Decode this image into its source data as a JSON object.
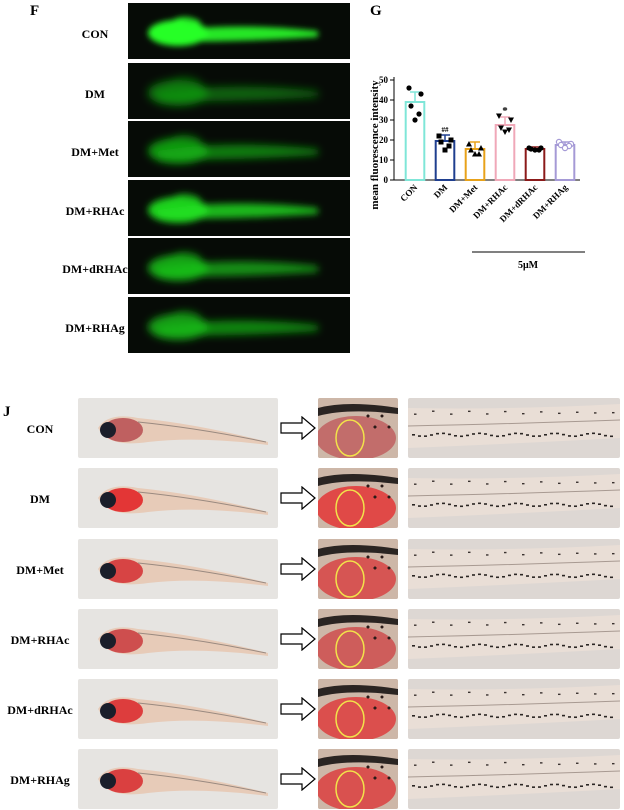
{
  "panel_f": {
    "label": "F",
    "groups": [
      "CON",
      "DM",
      "DM+Met",
      "DM+RHAc",
      "DM+dRHAc",
      "DM+RHAg"
    ],
    "glow": [
      1.0,
      0.35,
      0.5,
      0.8,
      0.6,
      0.55
    ]
  },
  "panel_g": {
    "label": "G",
    "footnote": "5μM",
    "chart_data": {
      "type": "bar",
      "categories": [
        "CON",
        "DM",
        "DM+Met",
        "DM+RHAc",
        "DM+dRHAc",
        "DM+RHAg"
      ],
      "values": [
        39,
        19.5,
        15.5,
        27.5,
        15.5,
        17.5
      ],
      "errors": [
        5,
        3,
        3.5,
        4,
        1,
        1.5
      ],
      "points": [
        [
          46,
          43,
          37,
          33,
          30
        ],
        [
          22,
          20,
          19,
          17,
          15
        ],
        [
          18,
          16,
          15,
          13,
          13
        ],
        [
          32,
          30,
          26,
          25,
          24
        ],
        [
          16,
          16,
          15.5,
          15,
          15
        ],
        [
          19,
          18,
          17.5,
          17,
          16
        ]
      ],
      "annotations": [
        "",
        "##",
        "",
        "*",
        "",
        ""
      ],
      "colors": [
        "#7fe6d8",
        "#1f3f8f",
        "#e8a21a",
        "#f0a8b8",
        "#8b1a1a",
        "#a59ad6"
      ],
      "ylabel": "mean fluorescence intensity",
      "ylim": [
        0,
        50
      ],
      "yticks": [
        0,
        10,
        20,
        30,
        40,
        50
      ]
    }
  },
  "panel_j": {
    "label": "J",
    "groups": [
      "CON",
      "DM",
      "DM+Met",
      "DM+RHAc",
      "DM+dRHAc",
      "DM+RHAg"
    ]
  }
}
